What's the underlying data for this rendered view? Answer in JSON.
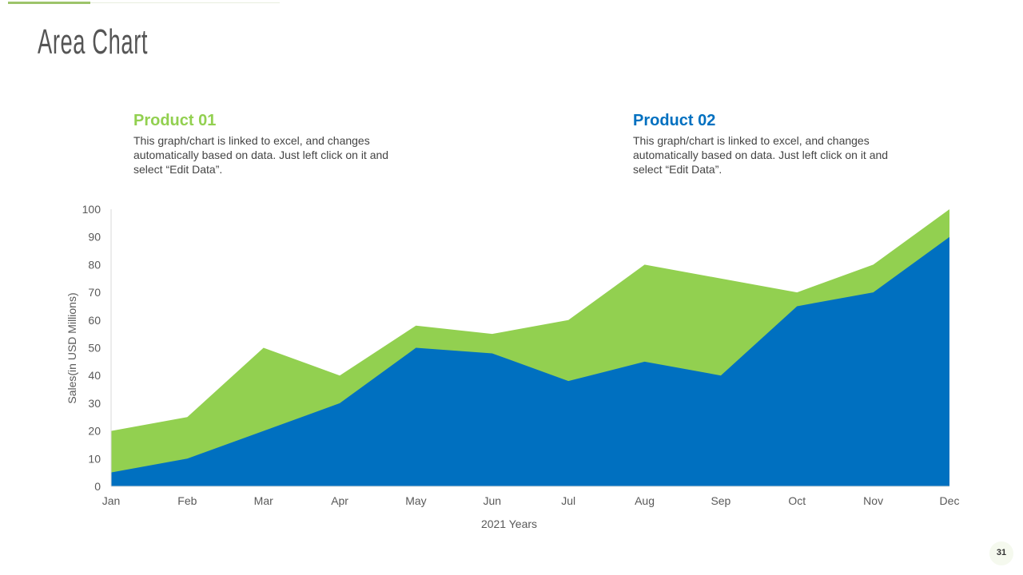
{
  "header": {
    "title": "Area Chart"
  },
  "products": [
    {
      "name": "Product 01",
      "color": "#92d050",
      "description": "This graph/chart is linked to excel, and changes automatically based on data. Just left click on it and select “Edit Data”."
    },
    {
      "name": "Product 02",
      "color": "#0070c0",
      "description": "This graph/chart is linked to excel, and changes automatically based on data. Just left click on it and select “Edit Data”."
    }
  ],
  "chart_data": {
    "type": "area",
    "categories": [
      "Jan",
      "Feb",
      "Mar",
      "Apr",
      "May",
      "Jun",
      "Jul",
      "Aug",
      "Sep",
      "Oct",
      "Nov",
      "Dec"
    ],
    "series": [
      {
        "name": "Product 01",
        "color": "#92d050",
        "values": [
          20,
          25,
          50,
          40,
          58,
          55,
          60,
          80,
          75,
          70,
          80,
          100
        ]
      },
      {
        "name": "Product 02",
        "color": "#0070c0",
        "values": [
          5,
          10,
          20,
          30,
          50,
          48,
          38,
          45,
          40,
          65,
          70,
          90
        ]
      }
    ],
    "xlabel": "2021 Years",
    "ylabel": "Sales(in USD Millions)",
    "ylim": [
      0,
      100
    ],
    "yticks": [
      0,
      10,
      20,
      30,
      40,
      50,
      60,
      70,
      80,
      90,
      100
    ],
    "grid": false
  },
  "footer": {
    "page_number": "31"
  }
}
